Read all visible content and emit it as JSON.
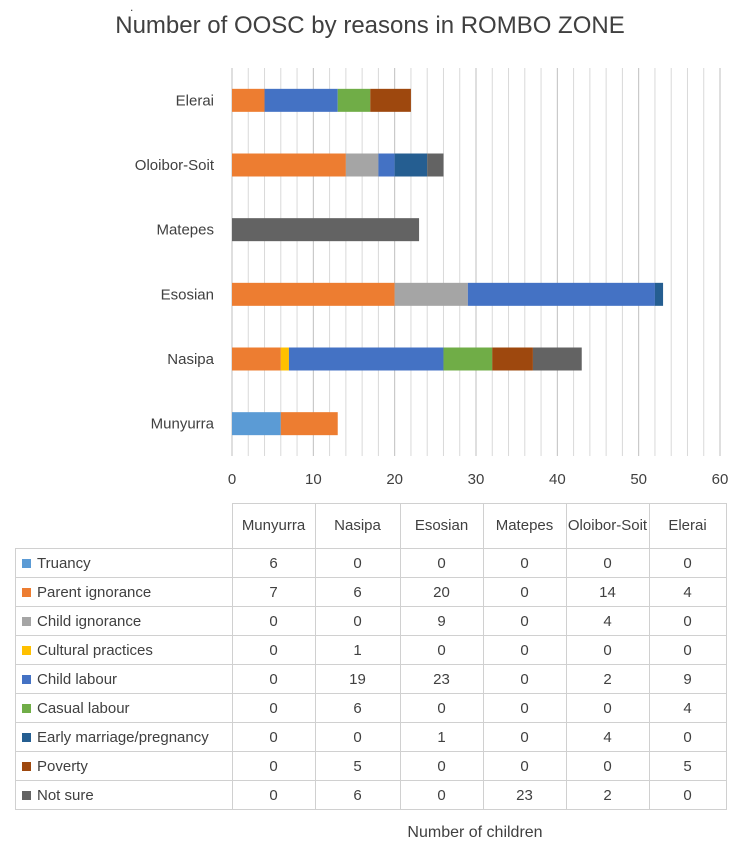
{
  "chart_data": {
    "type": "bar",
    "orientation": "horizontal",
    "stacked": true,
    "title": "Number of OOSC by reasons in ROMBO ZONE",
    "xlabel": "Number of children",
    "ylabel": "",
    "xlim": [
      0,
      60
    ],
    "x_ticks": [
      "0",
      "10",
      "20",
      "30",
      "40",
      "50",
      "60"
    ],
    "grid": true,
    "legend": "data-table",
    "categories": [
      "Munyurra",
      "Nasipa",
      "Esosian",
      "Matepes",
      "Oloibor-Soit",
      "Elerai"
    ],
    "series": [
      {
        "name": "Truancy",
        "color": "#5b9bd5",
        "values": [
          6,
          0,
          0,
          0,
          0,
          0
        ]
      },
      {
        "name": "Parent ignorance",
        "color": "#ed7d31",
        "values": [
          7,
          6,
          20,
          0,
          14,
          4
        ]
      },
      {
        "name": "Child ignorance",
        "color": "#a5a5a5",
        "values": [
          0,
          0,
          9,
          0,
          4,
          0
        ]
      },
      {
        "name": "Cultural practices",
        "color": "#ffc000",
        "values": [
          0,
          1,
          0,
          0,
          0,
          0
        ]
      },
      {
        "name": "Child labour",
        "color": "#4472c4",
        "values": [
          0,
          19,
          23,
          0,
          2,
          9
        ]
      },
      {
        "name": "Casual labour",
        "color": "#70ad47",
        "values": [
          0,
          6,
          0,
          0,
          0,
          4
        ]
      },
      {
        "name": "Early marriage/pregnancy",
        "color": "#255e91",
        "values": [
          0,
          0,
          1,
          0,
          4,
          0
        ]
      },
      {
        "name": "Poverty",
        "color": "#9e480e",
        "values": [
          0,
          5,
          0,
          0,
          0,
          5
        ]
      },
      {
        "name": "Not sure",
        "color": "#636363",
        "values": [
          0,
          6,
          0,
          23,
          2,
          0
        ]
      }
    ]
  },
  "stray_mark": "."
}
